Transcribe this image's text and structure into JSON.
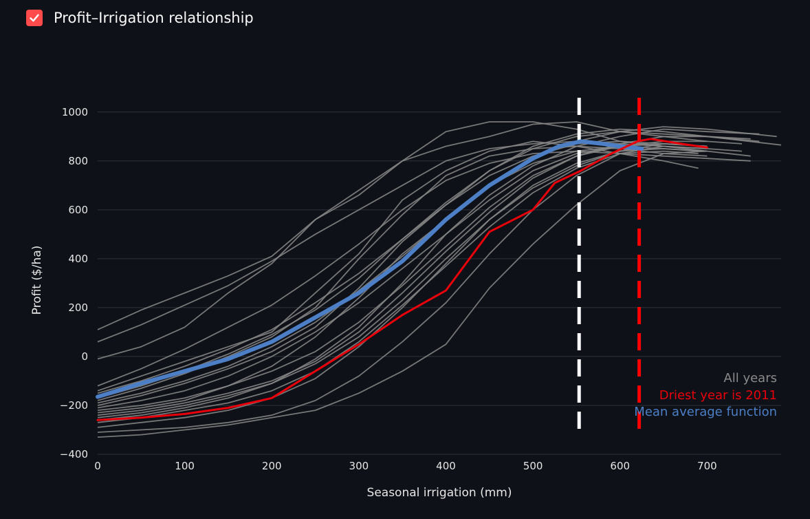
{
  "checkbox": {
    "label": "Profit–Irrigation relationship",
    "checked": true,
    "color": "#ff4b4b"
  },
  "colors": {
    "background": "#0e1117",
    "grid": "#31343c",
    "all_years": "#8a8a8a",
    "driest": "#e8000b",
    "mean": "#4c7fc6",
    "optimum_mean_line": "#ffffff",
    "optimum_driest_line": "#ff0000"
  },
  "chart_data": {
    "type": "line",
    "xlabel": "Seasonal irrigation (mm)",
    "ylabel": "Profit ($/ha)",
    "xlim": [
      0,
      785
    ],
    "ylim": [
      -400,
      1050
    ],
    "xticks": [
      0,
      100,
      200,
      300,
      400,
      500,
      600,
      700
    ],
    "yticks": [
      -400,
      -200,
      0,
      200,
      400,
      600,
      800,
      1000
    ],
    "grid": "horizontal",
    "legend": {
      "placement": "bottom-right",
      "entries": [
        "All years",
        "Driest year is 2011",
        "Mean average function"
      ]
    },
    "vlines": [
      {
        "x": 553,
        "style": "dashed",
        "color": "#ffffff"
      },
      {
        "x": 622,
        "style": "dashed",
        "color": "#ff0000"
      }
    ],
    "mean": {
      "x": [
        0,
        50,
        100,
        150,
        200,
        250,
        300,
        350,
        400,
        450,
        500,
        530,
        555,
        580,
        600,
        625
      ],
      "y": [
        -165,
        -110,
        -60,
        -10,
        60,
        160,
        260,
        390,
        560,
        700,
        810,
        860,
        880,
        870,
        860,
        850
      ]
    },
    "driest": {
      "x": [
        0,
        50,
        100,
        150,
        200,
        250,
        300,
        350,
        400,
        450,
        500,
        525,
        555,
        590,
        620,
        635,
        670,
        700
      ],
      "y": [
        -260,
        -250,
        -235,
        -210,
        -170,
        -60,
        50,
        170,
        270,
        510,
        600,
        710,
        760,
        830,
        880,
        890,
        870,
        855
      ]
    },
    "all_years": [
      {
        "x": [
          0,
          50,
          100,
          150,
          200,
          250,
          300,
          350,
          400,
          450,
          500,
          550,
          600,
          650,
          700,
          750
        ],
        "y": [
          110,
          190,
          260,
          330,
          410,
          560,
          680,
          800,
          920,
          960,
          960,
          930,
          880,
          860,
          840,
          820
        ]
      },
      {
        "x": [
          0,
          50,
          100,
          150,
          200,
          250,
          300,
          350,
          400,
          450,
          500,
          550,
          600,
          650,
          700
        ],
        "y": [
          -10,
          40,
          120,
          260,
          380,
          560,
          660,
          800,
          860,
          900,
          950,
          960,
          920,
          900,
          880
        ]
      },
      {
        "x": [
          0,
          50,
          100,
          150,
          200,
          250,
          300,
          350,
          400,
          450,
          500,
          550,
          600,
          650,
          700,
          750
        ],
        "y": [
          -140,
          -80,
          -20,
          40,
          100,
          260,
          420,
          640,
          760,
          840,
          880,
          860,
          830,
          820,
          810,
          800
        ]
      },
      {
        "x": [
          0,
          50,
          100,
          150,
          200,
          250,
          300,
          350,
          400,
          450,
          500,
          550,
          600,
          650,
          700
        ],
        "y": [
          -180,
          -130,
          -70,
          0,
          80,
          200,
          400,
          580,
          740,
          820,
          850,
          860,
          850,
          830,
          820
        ]
      },
      {
        "x": [
          0,
          50,
          100,
          150,
          200,
          250,
          300,
          350,
          400,
          450,
          500,
          550,
          600,
          650,
          700,
          785
        ],
        "y": [
          -200,
          -160,
          -110,
          -50,
          20,
          120,
          280,
          470,
          620,
          760,
          860,
          910,
          930,
          920,
          900,
          865
        ]
      },
      {
        "x": [
          0,
          50,
          100,
          150,
          200,
          250,
          300,
          350,
          400,
          450,
          500,
          550,
          600,
          650,
          700
        ],
        "y": [
          -230,
          -210,
          -180,
          -120,
          -40,
          80,
          240,
          420,
          560,
          700,
          790,
          840,
          860,
          850,
          840
        ]
      },
      {
        "x": [
          0,
          50,
          100,
          150,
          200,
          250,
          300,
          350,
          400,
          450,
          500,
          550,
          600,
          650,
          700,
          760
        ],
        "y": [
          -260,
          -240,
          -210,
          -170,
          -110,
          -10,
          120,
          300,
          500,
          660,
          780,
          860,
          900,
          930,
          920,
          910
        ]
      },
      {
        "x": [
          0,
          50,
          100,
          150,
          200,
          250,
          300,
          350,
          400,
          450,
          500,
          550,
          600,
          650,
          700
        ],
        "y": [
          -290,
          -270,
          -250,
          -220,
          -170,
          -90,
          40,
          200,
          380,
          560,
          690,
          780,
          840,
          870,
          860
        ]
      },
      {
        "x": [
          0,
          50,
          100,
          150,
          200,
          250,
          300,
          350,
          400,
          450,
          500,
          550,
          600,
          650,
          690
        ],
        "y": [
          -310,
          -300,
          -290,
          -270,
          -240,
          -180,
          -80,
          60,
          220,
          420,
          600,
          740,
          830,
          840,
          830
        ]
      },
      {
        "x": [
          0,
          50,
          100,
          150,
          200,
          250,
          300,
          350,
          400,
          450,
          500,
          550,
          600,
          650,
          700
        ],
        "y": [
          -330,
          -320,
          -300,
          -280,
          -250,
          -220,
          -150,
          -60,
          50,
          280,
          460,
          620,
          760,
          830,
          840
        ]
      },
      {
        "x": [
          0,
          50,
          100,
          150,
          200,
          250,
          300,
          350,
          400,
          450,
          500,
          550,
          600,
          650,
          700,
          740
        ],
        "y": [
          60,
          130,
          210,
          290,
          390,
          500,
          600,
          700,
          800,
          850,
          870,
          880,
          870,
          860,
          850,
          840
        ]
      },
      {
        "x": [
          0,
          50,
          100,
          150,
          200,
          250,
          300,
          350,
          400,
          450,
          500,
          550,
          600,
          650,
          690
        ],
        "y": [
          -120,
          -50,
          30,
          120,
          210,
          330,
          460,
          600,
          720,
          790,
          830,
          840,
          830,
          800,
          770
        ]
      },
      {
        "x": [
          0,
          50,
          100,
          150,
          200,
          250,
          300,
          350,
          400,
          450,
          500,
          550,
          600,
          650,
          700
        ],
        "y": [
          -150,
          -100,
          -40,
          30,
          110,
          220,
          340,
          480,
          620,
          740,
          820,
          870,
          880,
          870,
          860
        ]
      },
      {
        "x": [
          0,
          50,
          100,
          150,
          200,
          250,
          300,
          350,
          400,
          450,
          500,
          550,
          600,
          650,
          700,
          740
        ],
        "y": [
          -210,
          -180,
          -140,
          -80,
          0,
          100,
          220,
          360,
          500,
          640,
          760,
          830,
          860,
          880,
          880,
          870
        ]
      },
      {
        "x": [
          0,
          50,
          100,
          150,
          200,
          250,
          300,
          350,
          400,
          450,
          500,
          550,
          600,
          650,
          700,
          760
        ],
        "y": [
          -240,
          -220,
          -190,
          -150,
          -100,
          -20,
          100,
          260,
          430,
          590,
          730,
          820,
          870,
          900,
          900,
          880
        ]
      },
      {
        "x": [
          0,
          50,
          100,
          150,
          200,
          250,
          300,
          350,
          400,
          450,
          500,
          550,
          600,
          650,
          700
        ],
        "y": [
          -270,
          -250,
          -220,
          -190,
          -140,
          -60,
          60,
          210,
          370,
          530,
          670,
          770,
          830,
          860,
          850
        ]
      },
      {
        "x": [
          0,
          50,
          100,
          150,
          200,
          250,
          300,
          350,
          400,
          450,
          500,
          550,
          600,
          650,
          700,
          780
        ],
        "y": [
          -190,
          -150,
          -100,
          -40,
          40,
          140,
          270,
          410,
          560,
          700,
          810,
          880,
          920,
          940,
          930,
          900
        ]
      },
      {
        "x": [
          0,
          50,
          100,
          150,
          200,
          250,
          300,
          350,
          400,
          450,
          500,
          550,
          600,
          650,
          700
        ],
        "y": [
          -220,
          -200,
          -170,
          -120,
          -60,
          20,
          140,
          290,
          450,
          610,
          740,
          820,
          860,
          870,
          860
        ]
      },
      {
        "x": [
          0,
          50,
          100,
          150,
          200,
          250,
          300,
          350,
          400,
          450,
          500,
          550,
          600,
          650,
          700,
          750
        ],
        "y": [
          -170,
          -120,
          -60,
          10,
          90,
          190,
          320,
          480,
          630,
          760,
          850,
          900,
          920,
          910,
          900,
          890
        ]
      },
      {
        "x": [
          0,
          50,
          100,
          150,
          200,
          250,
          300,
          350,
          400,
          450,
          500,
          550,
          600,
          650,
          690
        ],
        "y": [
          -250,
          -230,
          -200,
          -160,
          -110,
          -30,
          80,
          230,
          400,
          560,
          700,
          790,
          840,
          850,
          840
        ]
      }
    ]
  }
}
